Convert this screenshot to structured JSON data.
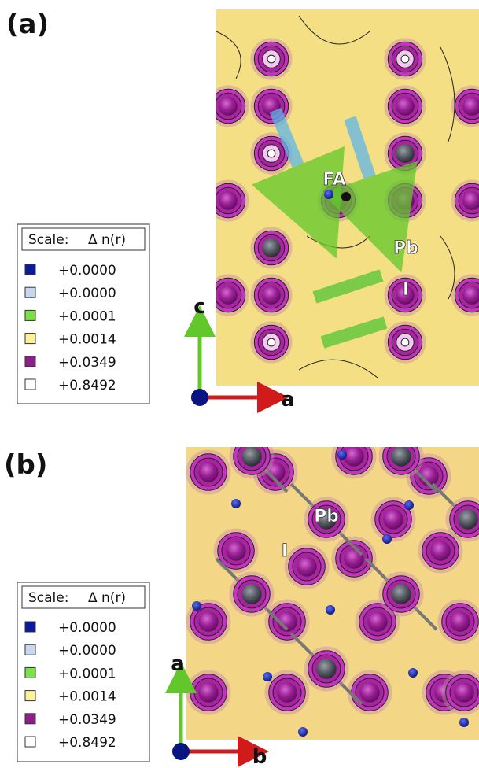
{
  "panels": [
    {
      "label": "(a)",
      "legend": {
        "title": "Scale:",
        "quantity": "Δ n(r)",
        "entries": [
          {
            "value": "+0.0000",
            "color": "#0b1a9c"
          },
          {
            "value": "+0.0000",
            "color": "#c9d6f2"
          },
          {
            "value": "+0.0001",
            "color": "#7de04a"
          },
          {
            "value": "+0.0014",
            "color": "#fbf39a"
          },
          {
            "value": "+0.0349",
            "color": "#8e1f8a"
          },
          {
            "value": "+0.8492",
            "color": "#ffffff"
          }
        ]
      },
      "axes": {
        "vertical": "c",
        "horizontal": "a"
      },
      "annotations": [
        "FA",
        "Pb",
        "I"
      ]
    },
    {
      "label": "(b)",
      "legend": {
        "title": "Scale:",
        "quantity": "Δ n(r)",
        "entries": [
          {
            "value": "+0.0000",
            "color": "#0b1a9c"
          },
          {
            "value": "+0.0000",
            "color": "#c9d6f2"
          },
          {
            "value": "+0.0001",
            "color": "#7de04a"
          },
          {
            "value": "+0.0014",
            "color": "#fbf39a"
          },
          {
            "value": "+0.0349",
            "color": "#8e1f8a"
          },
          {
            "value": "+0.8492",
            "color": "#ffffff"
          }
        ]
      },
      "axes": {
        "vertical": "a",
        "horizontal": "b"
      },
      "annotations": [
        "Pb",
        "I"
      ]
    }
  ]
}
